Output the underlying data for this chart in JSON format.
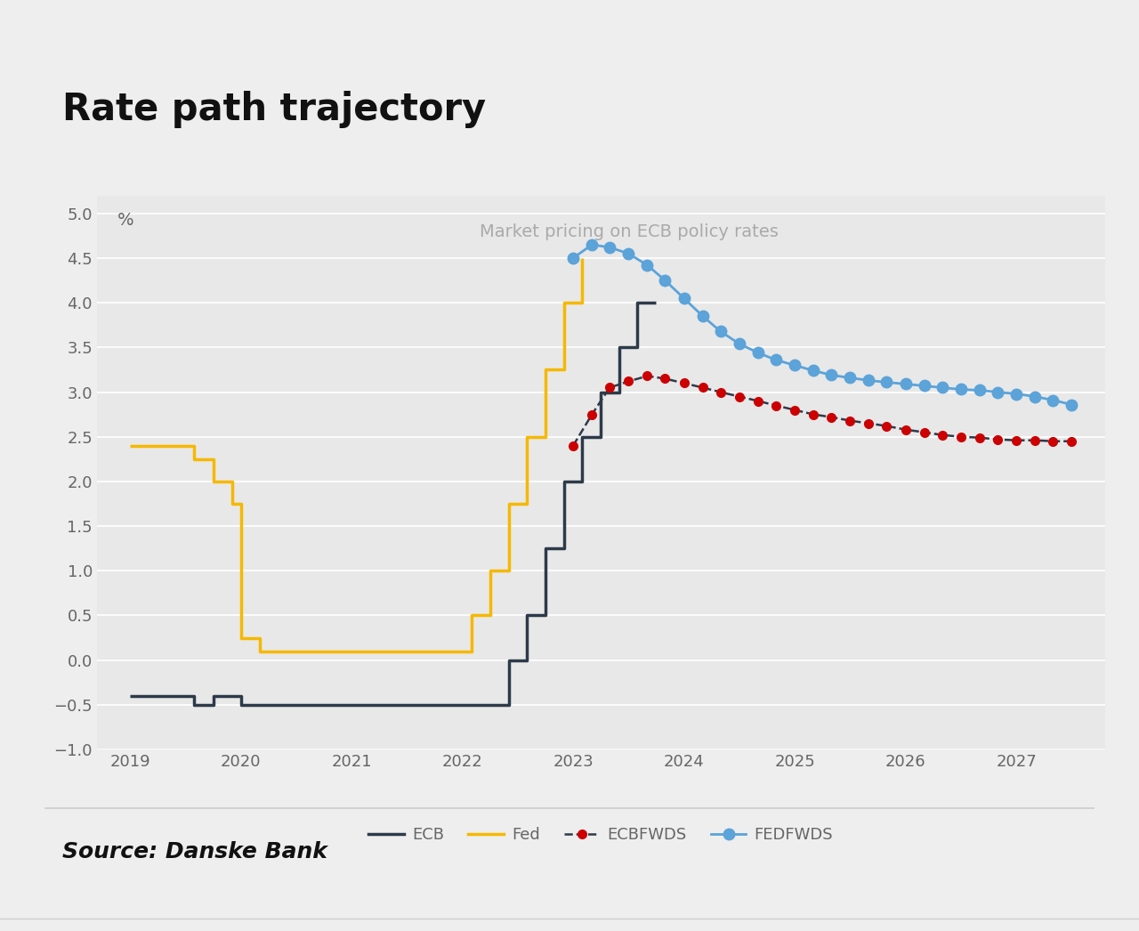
{
  "title": "Rate path trajectory",
  "subtitle": "Market pricing on ECB policy rates",
  "ylabel_text": "%",
  "source_text": "Source: Danske Bank",
  "background_color": "#eeeeee",
  "plot_background_color": "#e8e8e8",
  "title_color": "#111111",
  "subtitle_color": "#aaaaaa",
  "ylim": [
    -1.0,
    5.2
  ],
  "ytick_vals": [
    -1.0,
    -0.5,
    0.0,
    0.5,
    1.0,
    1.5,
    2.0,
    2.5,
    3.0,
    3.5,
    4.0,
    4.5,
    5.0
  ],
  "xtick_years": [
    2019,
    2020,
    2021,
    2022,
    2023,
    2024,
    2025,
    2026,
    2027
  ],
  "xlim": [
    2018.7,
    2027.8
  ],
  "ecb_color": "#2d3a4a",
  "fed_color": "#f5b800",
  "ecbfwds_line_color": "#2d3a4a",
  "fedfwds_line_color": "#5ba3d9",
  "ecbfwds_marker_color": "#cc0000",
  "fedfwds_marker_color": "#5ba3d9",
  "ecb_data": {
    "x": [
      2019.0,
      2019.58,
      2019.58,
      2019.75,
      2019.75,
      2020.0,
      2020.0,
      2020.25,
      2020.25,
      2022.42,
      2022.42,
      2022.58,
      2022.58,
      2022.75,
      2022.75,
      2022.92,
      2022.92,
      2023.08,
      2023.08,
      2023.25,
      2023.25,
      2023.42,
      2023.42,
      2023.58,
      2023.58,
      2023.75
    ],
    "y": [
      -0.4,
      -0.4,
      -0.5,
      -0.5,
      -0.4,
      -0.4,
      -0.5,
      -0.5,
      -0.5,
      -0.5,
      0.0,
      0.0,
      0.5,
      0.5,
      1.25,
      1.25,
      2.0,
      2.0,
      2.5,
      2.5,
      3.0,
      3.0,
      3.5,
      3.5,
      4.0,
      4.0
    ]
  },
  "fed_data": {
    "x": [
      2019.0,
      2019.58,
      2019.58,
      2019.75,
      2019.75,
      2019.92,
      2019.92,
      2020.0,
      2020.0,
      2020.17,
      2020.17,
      2022.08,
      2022.08,
      2022.25,
      2022.25,
      2022.42,
      2022.42,
      2022.58,
      2022.58,
      2022.75,
      2022.75,
      2022.92,
      2022.92,
      2023.08,
      2023.08
    ],
    "y": [
      2.4,
      2.4,
      2.25,
      2.25,
      2.0,
      2.0,
      1.75,
      1.75,
      0.25,
      0.25,
      0.1,
      0.1,
      0.5,
      0.5,
      1.0,
      1.0,
      1.75,
      1.75,
      2.5,
      2.5,
      3.25,
      3.25,
      4.0,
      4.0,
      4.5
    ]
  },
  "ecbfwds_data": {
    "x": [
      2023.0,
      2023.17,
      2023.33,
      2023.5,
      2023.67,
      2023.83,
      2024.0,
      2024.17,
      2024.33,
      2024.5,
      2024.67,
      2024.83,
      2025.0,
      2025.17,
      2025.33,
      2025.5,
      2025.67,
      2025.83,
      2026.0,
      2026.17,
      2026.33,
      2026.5,
      2026.67,
      2026.83,
      2027.0,
      2027.17,
      2027.33,
      2027.5
    ],
    "y": [
      2.4,
      2.75,
      3.05,
      3.12,
      3.18,
      3.15,
      3.1,
      3.05,
      3.0,
      2.95,
      2.9,
      2.85,
      2.8,
      2.75,
      2.72,
      2.68,
      2.65,
      2.62,
      2.58,
      2.55,
      2.52,
      2.5,
      2.49,
      2.47,
      2.46,
      2.46,
      2.45,
      2.45
    ]
  },
  "fedfwds_data": {
    "x": [
      2023.0,
      2023.17,
      2023.33,
      2023.5,
      2023.67,
      2023.83,
      2024.0,
      2024.17,
      2024.33,
      2024.5,
      2024.67,
      2024.83,
      2025.0,
      2025.17,
      2025.33,
      2025.5,
      2025.67,
      2025.83,
      2026.0,
      2026.17,
      2026.33,
      2026.5,
      2026.67,
      2026.83,
      2027.0,
      2027.17,
      2027.33,
      2027.5
    ],
    "y": [
      4.5,
      4.65,
      4.62,
      4.55,
      4.42,
      4.25,
      4.05,
      3.85,
      3.68,
      3.54,
      3.44,
      3.36,
      3.3,
      3.24,
      3.19,
      3.16,
      3.13,
      3.11,
      3.09,
      3.07,
      3.05,
      3.03,
      3.02,
      3.0,
      2.98,
      2.95,
      2.91,
      2.86
    ]
  },
  "legend_labels": [
    "ECB",
    "Fed",
    "ECBFWDS",
    "FEDFWDS"
  ],
  "grid_color": "#ffffff",
  "tick_color": "#666666",
  "separator_color": "#cccccc",
  "top_bar_color": "#888888"
}
